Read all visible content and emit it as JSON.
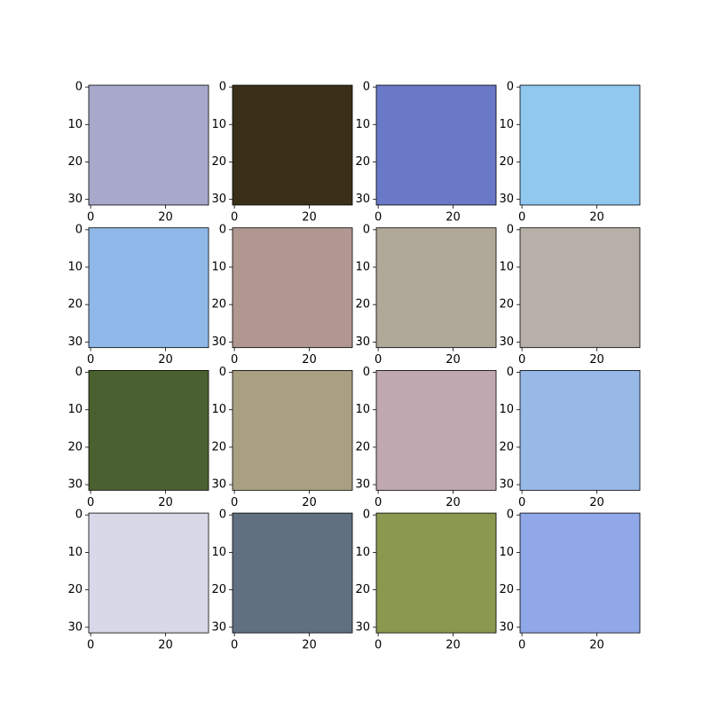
{
  "chart_data": [
    {
      "type": "image",
      "color": "#a8a8cc",
      "xlim": [
        -0.5,
        31.5
      ],
      "ylim": [
        31.5,
        -0.5
      ],
      "xticks": [
        0,
        20
      ],
      "yticks": [
        0,
        10,
        20,
        30
      ]
    },
    {
      "type": "image",
      "color": "#3a3018",
      "xlim": [
        -0.5,
        31.5
      ],
      "ylim": [
        31.5,
        -0.5
      ],
      "xticks": [
        0,
        20
      ],
      "yticks": [
        0,
        10,
        20,
        30
      ]
    },
    {
      "type": "image",
      "color": "#6a78c8",
      "xlim": [
        -0.5,
        31.5
      ],
      "ylim": [
        31.5,
        -0.5
      ],
      "xticks": [
        0,
        20
      ],
      "yticks": [
        0,
        10,
        20,
        30
      ]
    },
    {
      "type": "image",
      "color": "#90c8f0",
      "xlim": [
        -0.5,
        31.5
      ],
      "ylim": [
        31.5,
        -0.5
      ],
      "xticks": [
        0,
        20
      ],
      "yticks": [
        0,
        10,
        20,
        30
      ]
    },
    {
      "type": "image",
      "color": "#90b8e8",
      "xlim": [
        -0.5,
        31.5
      ],
      "ylim": [
        31.5,
        -0.5
      ],
      "xticks": [
        0,
        20
      ],
      "yticks": [
        0,
        10,
        20,
        30
      ]
    },
    {
      "type": "image",
      "color": "#b09890",
      "xlim": [
        -0.5,
        31.5
      ],
      "ylim": [
        31.5,
        -0.5
      ],
      "xticks": [
        0,
        20
      ],
      "yticks": [
        0,
        10,
        20,
        30
      ]
    },
    {
      "type": "image",
      "color": "#b0a898",
      "xlim": [
        -0.5,
        31.5
      ],
      "ylim": [
        31.5,
        -0.5
      ],
      "xticks": [
        0,
        20
      ],
      "yticks": [
        0,
        10,
        20,
        30
      ]
    },
    {
      "type": "image",
      "color": "#b8b0a8",
      "xlim": [
        -0.5,
        31.5
      ],
      "ylim": [
        31.5,
        -0.5
      ],
      "xticks": [
        0,
        20
      ],
      "yticks": [
        0,
        10,
        20,
        30
      ]
    },
    {
      "type": "image",
      "color": "#4a6030",
      "xlim": [
        -0.5,
        31.5
      ],
      "ylim": [
        31.5,
        -0.5
      ],
      "xticks": [
        0,
        20
      ],
      "yticks": [
        0,
        10,
        20,
        30
      ]
    },
    {
      "type": "image",
      "color": "#a8a080",
      "xlim": [
        -0.5,
        31.5
      ],
      "ylim": [
        31.5,
        -0.5
      ],
      "xticks": [
        0,
        20
      ],
      "yticks": [
        0,
        10,
        20,
        30
      ]
    },
    {
      "type": "image",
      "color": "#c0a8b0",
      "xlim": [
        -0.5,
        31.5
      ],
      "ylim": [
        31.5,
        -0.5
      ],
      "xticks": [
        0,
        20
      ],
      "yticks": [
        0,
        10,
        20,
        30
      ]
    },
    {
      "type": "image",
      "color": "#98b8e8",
      "xlim": [
        -0.5,
        31.5
      ],
      "ylim": [
        31.5,
        -0.5
      ],
      "xticks": [
        0,
        20
      ],
      "yticks": [
        0,
        10,
        20,
        30
      ]
    },
    {
      "type": "image",
      "color": "#d8d8e8",
      "xlim": [
        -0.5,
        31.5
      ],
      "ylim": [
        31.5,
        -0.5
      ],
      "xticks": [
        0,
        20
      ],
      "yticks": [
        0,
        10,
        20,
        30
      ]
    },
    {
      "type": "image",
      "color": "#607080",
      "xlim": [
        -0.5,
        31.5
      ],
      "ylim": [
        31.5,
        -0.5
      ],
      "xticks": [
        0,
        20
      ],
      "yticks": [
        0,
        10,
        20,
        30
      ]
    },
    {
      "type": "image",
      "color": "#8a9850",
      "xlim": [
        -0.5,
        31.5
      ],
      "ylim": [
        31.5,
        -0.5
      ],
      "xticks": [
        0,
        20
      ],
      "yticks": [
        0,
        10,
        20,
        30
      ]
    },
    {
      "type": "image",
      "color": "#90a8e8",
      "xlim": [
        -0.5,
        31.5
      ],
      "ylim": [
        31.5,
        -0.5
      ],
      "xticks": [
        0,
        20
      ],
      "yticks": [
        0,
        10,
        20,
        30
      ]
    }
  ]
}
